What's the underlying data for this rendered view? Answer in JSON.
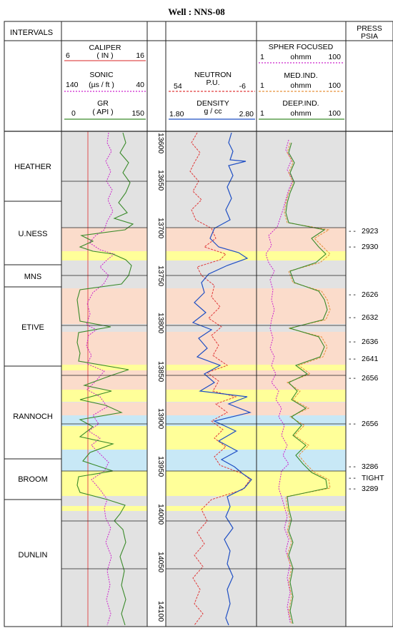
{
  "title": "Well : NNS-08",
  "headers": {
    "intervals": "INTERVALS",
    "press_line1": "PRESS",
    "press_line2": "PSIA"
  },
  "track1": {
    "caliper": {
      "name": "CALIPER",
      "unit": "( IN )",
      "min": "6",
      "max": "16",
      "color": "#e05050"
    },
    "sonic": {
      "name": "SONIC",
      "unit": "(µs / ft )",
      "min": "140",
      "max": "40",
      "color": "#cc22cc"
    },
    "gr": {
      "name": "GR",
      "unit": "( API )",
      "min": "0",
      "max": "150",
      "color": "#3a8a2a"
    }
  },
  "track2": {
    "neutron": {
      "name": "NEUTRON",
      "unit": "P.U.",
      "min": "54",
      "max": "-6",
      "color": "#e03a3a"
    },
    "density": {
      "name": "DENSITY",
      "unit": "g / cc",
      "min": "1.80",
      "max": "2.80",
      "color": "#1f4fc4"
    }
  },
  "track3": {
    "spher": {
      "name": "SPHER FOCUSED",
      "unit": "ohmm",
      "min": "1",
      "max": "100",
      "color": "#cc22cc"
    },
    "medind": {
      "name": "MED.IND.",
      "unit": "ohmm",
      "min": "1",
      "max": "100",
      "color": "#e8903a"
    },
    "deepind": {
      "name": "DEEP.IND.",
      "unit": "ohmm",
      "min": "1",
      "max": "100",
      "color": "#3a8a2a"
    }
  },
  "depth_ticks": [
    "13600",
    "13650",
    "13700",
    "13750",
    "13800",
    "13850",
    "13900",
    "13950",
    "14000",
    "14050",
    "14100"
  ],
  "intervals": [
    "HEATHER",
    "U.NESS",
    "MNS",
    "ETIVE",
    "RANNOCH",
    "BROOM",
    "DUNLIN"
  ],
  "pressures": [
    "2923",
    "2930",
    "2626",
    "2632",
    "2636",
    "2641",
    "2656",
    "2656",
    "3286",
    "TIGHT",
    "3289"
  ],
  "colors": {
    "shale": "#e2e2e2",
    "sand_orange": "#fbdccb",
    "sand_yellow": "#ffff99",
    "water_blue": "#c8e8f6"
  }
}
